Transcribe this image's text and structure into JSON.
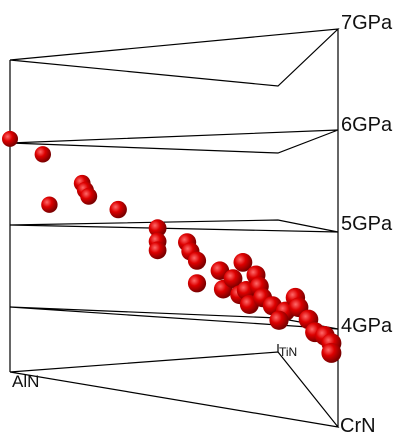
{
  "chart_data": {
    "type": "scatter",
    "projection": "3d-ternary-prism",
    "title": "",
    "corners": {
      "front_left": "AlN",
      "back_middle": "TiN",
      "front_right": "CrN"
    },
    "z_axis": {
      "unit": "GPa",
      "ticks": [
        {
          "value": 4,
          "label": "4GPa"
        },
        {
          "value": 5,
          "label": "5GPa"
        },
        {
          "value": 6,
          "label": "6GPa"
        },
        {
          "value": 7,
          "label": "7GPa"
        }
      ]
    },
    "series": [
      {
        "color": "#dd0000",
        "points": [
          {
            "h": 0.0,
            "d": 0.0,
            "z": 6.05
          },
          {
            "h": 0.1,
            "d": 0.0,
            "z": 5.85
          },
          {
            "h": 0.12,
            "d": 0.0,
            "z": 5.25
          },
          {
            "h": 0.22,
            "d": 0.0,
            "z": 5.5
          },
          {
            "h": 0.23,
            "d": 0.0,
            "z": 5.42
          },
          {
            "h": 0.24,
            "d": 0.0,
            "z": 5.35
          },
          {
            "h": 0.33,
            "d": 0.0,
            "z": 5.2
          },
          {
            "h": 0.45,
            "d": 0.0,
            "z": 5.0
          },
          {
            "h": 0.45,
            "d": 0.0,
            "z": 4.85
          },
          {
            "h": 0.45,
            "d": 0.0,
            "z": 4.75
          },
          {
            "h": 0.54,
            "d": 0.0,
            "z": 4.85
          },
          {
            "h": 0.55,
            "d": 0.0,
            "z": 4.75
          },
          {
            "h": 0.57,
            "d": 0.0,
            "z": 4.65
          },
          {
            "h": 0.57,
            "d": 0.0,
            "z": 4.4
          },
          {
            "h": 0.64,
            "d": 0.0,
            "z": 4.55
          },
          {
            "h": 0.65,
            "d": 0.0,
            "z": 4.35
          },
          {
            "h": 0.68,
            "d": 0.0,
            "z": 4.47
          },
          {
            "h": 0.7,
            "d": 0.0,
            "z": 4.3
          },
          {
            "h": 0.72,
            "d": 0.0,
            "z": 4.35
          },
          {
            "h": 0.73,
            "d": 0.0,
            "z": 4.2
          },
          {
            "h": 0.71,
            "d": 0.0,
            "z": 4.65
          },
          {
            "h": 0.75,
            "d": 0.0,
            "z": 4.52
          },
          {
            "h": 0.76,
            "d": 0.0,
            "z": 4.4
          },
          {
            "h": 0.77,
            "d": 0.0,
            "z": 4.28
          },
          {
            "h": 0.8,
            "d": 0.0,
            "z": 4.2
          },
          {
            "h": 0.84,
            "d": 0.0,
            "z": 4.15
          },
          {
            "h": 0.82,
            "d": 0.0,
            "z": 4.05
          },
          {
            "h": 0.87,
            "d": 0.0,
            "z": 4.3
          },
          {
            "h": 0.88,
            "d": 0.0,
            "z": 4.2
          },
          {
            "h": 0.91,
            "d": 0.0,
            "z": 4.08
          },
          {
            "h": 0.93,
            "d": 0.0,
            "z": 3.95
          },
          {
            "h": 0.96,
            "d": 0.0,
            "z": 3.92
          },
          {
            "h": 0.98,
            "d": 0.0,
            "z": 3.85
          },
          {
            "h": 0.98,
            "d": 0.0,
            "z": 3.75
          }
        ]
      }
    ]
  }
}
